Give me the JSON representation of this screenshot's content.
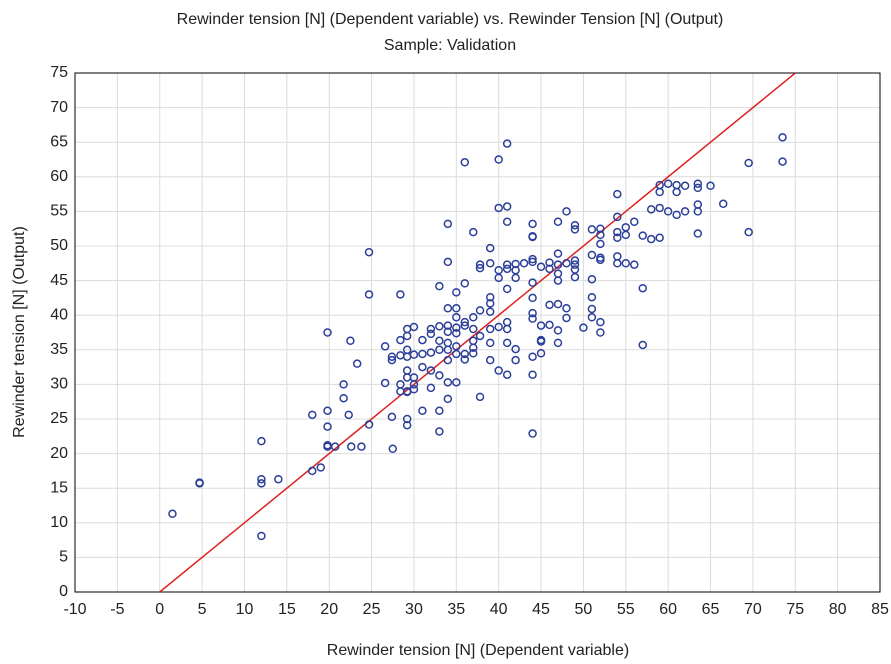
{
  "chart_data": {
    "type": "scatter",
    "title": "Rewinder tension [N] (Dependent variable) vs. Rewinder Tension [N] (Output)",
    "subtitle": "Sample: Validation",
    "x_label": "Rewinder tension [N] (Dependent variable)",
    "y_label": "Rewinder tension [N] (Output)",
    "color": "#2b3f99",
    "grid": true,
    "xlim": [
      -10,
      85
    ],
    "xticks": [
      -10,
      -5,
      0,
      5,
      10,
      15,
      20,
      25,
      30,
      35,
      40,
      45,
      50,
      55,
      60,
      65,
      70,
      75,
      80,
      85
    ],
    "ylim": [
      0,
      75
    ],
    "yticks": [
      0,
      5,
      10,
      15,
      20,
      25,
      30,
      35,
      40,
      45,
      50,
      55,
      60,
      65,
      70,
      75
    ],
    "reference_line": {
      "x": [
        0,
        75
      ],
      "y": [
        0,
        75
      ],
      "color": "#e02020"
    },
    "x": [
      1.5,
      4.7,
      4.7,
      12,
      12,
      12,
      12,
      14,
      18,
      18,
      19,
      19.8,
      19.8,
      19.8,
      19.8,
      19.8,
      20.7,
      21.7,
      21.7,
      22.3,
      22.5,
      22.6,
      23.3,
      23.8,
      24.7,
      24.7,
      24.7,
      26.6,
      26.6,
      27.4,
      27.4,
      27.4,
      27.5,
      28.4,
      28.4,
      28.4,
      28.4,
      28.4,
      29.2,
      29.2,
      29.2,
      29.2,
      29.2,
      29.2,
      29.2,
      29.2,
      29.2,
      29.2,
      30,
      30,
      30,
      30,
      30,
      31,
      31,
      31,
      31,
      32,
      32,
      32,
      32,
      32,
      33,
      33,
      33,
      33,
      33,
      33,
      33,
      34,
      34,
      34,
      34,
      34,
      34,
      34,
      34,
      34,
      34,
      35,
      35,
      35,
      35,
      35,
      35,
      35,
      35,
      36,
      36,
      36,
      36,
      36,
      36,
      37,
      37,
      37,
      37,
      37,
      37,
      37.8,
      37.8,
      37.8,
      37.8,
      37.8,
      39,
      39,
      39,
      39,
      39,
      39,
      39,
      39,
      40,
      40,
      40,
      40,
      40,
      40,
      41,
      41,
      41,
      41,
      41,
      41,
      41,
      41,
      41,
      41,
      42,
      42,
      42,
      42,
      42,
      43,
      44,
      44,
      44,
      44,
      44,
      44,
      44,
      44,
      44,
      44,
      44,
      44,
      45,
      45,
      45,
      45,
      45,
      46,
      46,
      46,
      46,
      47,
      47,
      47,
      47,
      47,
      47,
      47,
      47,
      48,
      48,
      48,
      48,
      49,
      49,
      49,
      49,
      49,
      49,
      50,
      51,
      51,
      51,
      51,
      51,
      51,
      52,
      52,
      52,
      52,
      52,
      52,
      52,
      54,
      54,
      54,
      54,
      54,
      54,
      55,
      55,
      55,
      56,
      56,
      57,
      57,
      57,
      58,
      58,
      59,
      59,
      59,
      59,
      60,
      60,
      61,
      61,
      61,
      62,
      62,
      63.5,
      63.5,
      63.5,
      63.5,
      63.5,
      65,
      66.5,
      69.5,
      69.5,
      73.5,
      73.5
    ],
    "values": [
      11.3,
      15.7,
      15.8,
      21.8,
      16.3,
      15.7,
      8.1,
      16.3,
      25.6,
      17.5,
      18,
      37.5,
      26.2,
      23.9,
      21.2,
      21,
      21,
      30,
      28,
      25.6,
      36.3,
      21,
      33,
      21,
      49.1,
      43,
      24.2,
      35.5,
      30.2,
      34,
      33.5,
      25.3,
      20.7,
      43,
      36.4,
      34.2,
      30,
      29,
      38,
      37,
      35,
      34,
      32,
      31,
      29,
      28.9,
      25,
      24.1,
      38.3,
      34.3,
      31,
      30,
      29.3,
      36.4,
      34.4,
      32.5,
      26.2,
      38,
      37.3,
      34.6,
      32,
      29.5,
      44.2,
      38.4,
      36.3,
      35,
      31.3,
      26.2,
      23.2,
      53.2,
      47.7,
      41,
      38.5,
      37.6,
      36,
      35,
      33.5,
      30.3,
      27.9,
      43.3,
      41,
      39.7,
      38.2,
      37.4,
      35.5,
      34.4,
      30.3,
      62.1,
      44.6,
      39,
      38.5,
      34.4,
      33.6,
      52,
      39.7,
      38,
      36.3,
      35.3,
      34.5,
      47.3,
      46.8,
      40.7,
      37,
      28.2,
      49.7,
      47.5,
      42.6,
      41.7,
      40.5,
      38,
      36,
      33.5,
      62.5,
      55.5,
      46.5,
      45.4,
      38.3,
      32,
      64.8,
      55.7,
      53.5,
      47.3,
      46.7,
      43.8,
      39,
      38,
      36,
      31.4,
      47.4,
      46.5,
      45.4,
      35.1,
      33.5,
      47.5,
      53.2,
      51.4,
      51.3,
      48.1,
      47.7,
      44.7,
      42.5,
      40.3,
      39.5,
      34,
      31.4,
      22.9,
      47,
      38.5,
      36.4,
      36.2,
      34.5,
      47.6,
      46.7,
      41.5,
      38.6,
      53.5,
      48.9,
      47.3,
      46,
      45,
      41.6,
      37.8,
      36,
      55,
      47.5,
      41,
      39.6,
      53,
      52.4,
      47.9,
      47.3,
      46.6,
      45.5,
      38.2,
      52.4,
      48.7,
      45.2,
      42.6,
      40.9,
      39.7,
      52.5,
      51.6,
      50.3,
      48.3,
      48,
      39,
      37.5,
      57.5,
      54.2,
      52,
      51.2,
      48.5,
      47.5,
      52.7,
      51.6,
      47.5,
      53.5,
      47.3,
      51.5,
      43.9,
      35.7,
      55.3,
      51,
      58.8,
      57.8,
      55.5,
      51.2,
      59,
      55,
      58.8,
      57.8,
      54.5,
      58.7,
      55,
      59,
      58.4,
      56,
      55,
      51.8,
      58.7,
      56.1,
      62,
      52,
      65.7,
      62.2
    ]
  }
}
